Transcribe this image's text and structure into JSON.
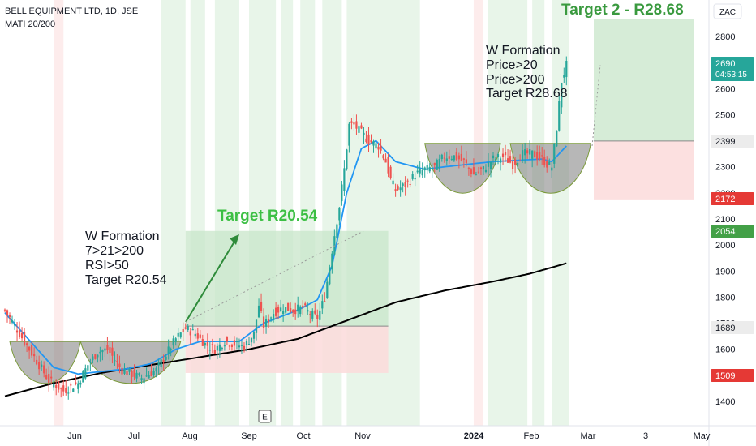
{
  "header": {
    "symbol_line": "BELL EQUIPMENT LTD, 1D, JSE",
    "indicator_line": "MATI 20/200"
  },
  "currency": "ZAC",
  "countdown": "04:53:15",
  "colors": {
    "up": "#26a69a",
    "down": "#ef5350",
    "ma_fast": "#2196f3",
    "ma_slow": "#000000",
    "target_text": "#3cbf44",
    "annotation_text": "#131722",
    "bg_green": "#e8f5e9",
    "bg_red": "#fdecec",
    "profit_zone": "#c8e6c9",
    "loss_zone": "#fbdada"
  },
  "annotations": {
    "first": [
      "W Formation",
      "7>21>200",
      "RSI>50",
      "Target R20.54"
    ],
    "second": [
      "W Formation",
      "Price>20",
      "Price>200",
      "Target R28.68"
    ],
    "target1": "Target R20.54",
    "target2": "Target 2 - R28.68"
  },
  "price_badges": [
    {
      "value": "2690",
      "bg": "#26a69a",
      "fg": "#ffffff"
    },
    {
      "value": "2399",
      "bg": "#ececec",
      "fg": "#131722"
    },
    {
      "value": "2172",
      "bg": "#e53935",
      "fg": "#ffffff"
    },
    {
      "value": "2054",
      "bg": "#43a047",
      "fg": "#ffffff"
    },
    {
      "value": "1689",
      "bg": "#ececec",
      "fg": "#131722"
    },
    {
      "value": "1509",
      "bg": "#e53935",
      "fg": "#ffffff"
    }
  ],
  "earnings_marker": "E",
  "chart_data": {
    "type": "candlestick",
    "y_ticks": [
      1400,
      1500,
      1600,
      1700,
      1800,
      1900,
      2000,
      2100,
      2200,
      2300,
      2400,
      2500,
      2600,
      2700,
      2800
    ],
    "x_ticks": [
      "Jun",
      "Jul",
      "Aug",
      "Sep",
      "Oct",
      "Nov",
      "2024",
      "Feb",
      "Mar",
      "3",
      "May"
    ],
    "ylim": [
      1330,
      2890
    ],
    "last_price": 2690,
    "trades": [
      {
        "entry": 1689,
        "stop": 1509,
        "target": 2054
      },
      {
        "entry": 2399,
        "stop": 2172,
        "target": 2868
      }
    ],
    "close_path": [
      [
        0,
        1750
      ],
      [
        6,
        1660
      ],
      [
        12,
        1570
      ],
      [
        18,
        1480
      ],
      [
        24,
        1440
      ],
      [
        30,
        1470
      ],
      [
        34,
        1540
      ],
      [
        38,
        1590
      ],
      [
        42,
        1600
      ],
      [
        48,
        1520
      ],
      [
        56,
        1490
      ],
      [
        62,
        1520
      ],
      [
        66,
        1580
      ],
      [
        70,
        1640
      ],
      [
        74,
        1680
      ],
      [
        78,
        1660
      ],
      [
        82,
        1620
      ],
      [
        86,
        1600
      ],
      [
        90,
        1630
      ],
      [
        94,
        1620
      ],
      [
        98,
        1610
      ],
      [
        102,
        1660
      ],
      [
        104,
        1770
      ],
      [
        106,
        1690
      ],
      [
        110,
        1740
      ],
      [
        114,
        1760
      ],
      [
        118,
        1750
      ],
      [
        122,
        1760
      ],
      [
        126,
        1730
      ],
      [
        128,
        1720
      ],
      [
        131,
        1800
      ],
      [
        133,
        1920
      ],
      [
        135,
        2040
      ],
      [
        137,
        2150
      ],
      [
        139,
        2290
      ],
      [
        141,
        2460
      ],
      [
        143,
        2460
      ],
      [
        145,
        2440
      ],
      [
        149,
        2400
      ],
      [
        153,
        2380
      ],
      [
        156,
        2320
      ],
      [
        158,
        2250
      ],
      [
        160,
        2210
      ],
      [
        164,
        2230
      ],
      [
        168,
        2270
      ],
      [
        172,
        2290
      ],
      [
        176,
        2300
      ],
      [
        180,
        2340
      ],
      [
        184,
        2340
      ],
      [
        188,
        2320
      ],
      [
        192,
        2270
      ],
      [
        196,
        2290
      ],
      [
        200,
        2330
      ],
      [
        204,
        2340
      ],
      [
        208,
        2310
      ],
      [
        212,
        2350
      ],
      [
        216,
        2350
      ],
      [
        220,
        2330
      ],
      [
        222,
        2310
      ],
      [
        224,
        2300
      ],
      [
        226,
        2450
      ],
      [
        228,
        2630
      ],
      [
        230,
        2690
      ]
    ],
    "ma_fast": [
      [
        0,
        1740
      ],
      [
        20,
        1530
      ],
      [
        30,
        1505
      ],
      [
        50,
        1525
      ],
      [
        60,
        1545
      ],
      [
        70,
        1600
      ],
      [
        80,
        1630
      ],
      [
        96,
        1630
      ],
      [
        106,
        1700
      ],
      [
        120,
        1750
      ],
      [
        128,
        1790
      ],
      [
        134,
        1920
      ],
      [
        140,
        2200
      ],
      [
        146,
        2370
      ],
      [
        152,
        2400
      ],
      [
        160,
        2320
      ],
      [
        172,
        2290
      ],
      [
        180,
        2300
      ],
      [
        200,
        2320
      ],
      [
        220,
        2330
      ],
      [
        224,
        2320
      ],
      [
        230,
        2380
      ]
    ],
    "ma_slow": [
      [
        0,
        1420
      ],
      [
        20,
        1470
      ],
      [
        40,
        1510
      ],
      [
        60,
        1540
      ],
      [
        80,
        1570
      ],
      [
        100,
        1600
      ],
      [
        120,
        1640
      ],
      [
        140,
        1710
      ],
      [
        160,
        1780
      ],
      [
        180,
        1825
      ],
      [
        200,
        1860
      ],
      [
        215,
        1890
      ],
      [
        230,
        1930
      ]
    ]
  }
}
